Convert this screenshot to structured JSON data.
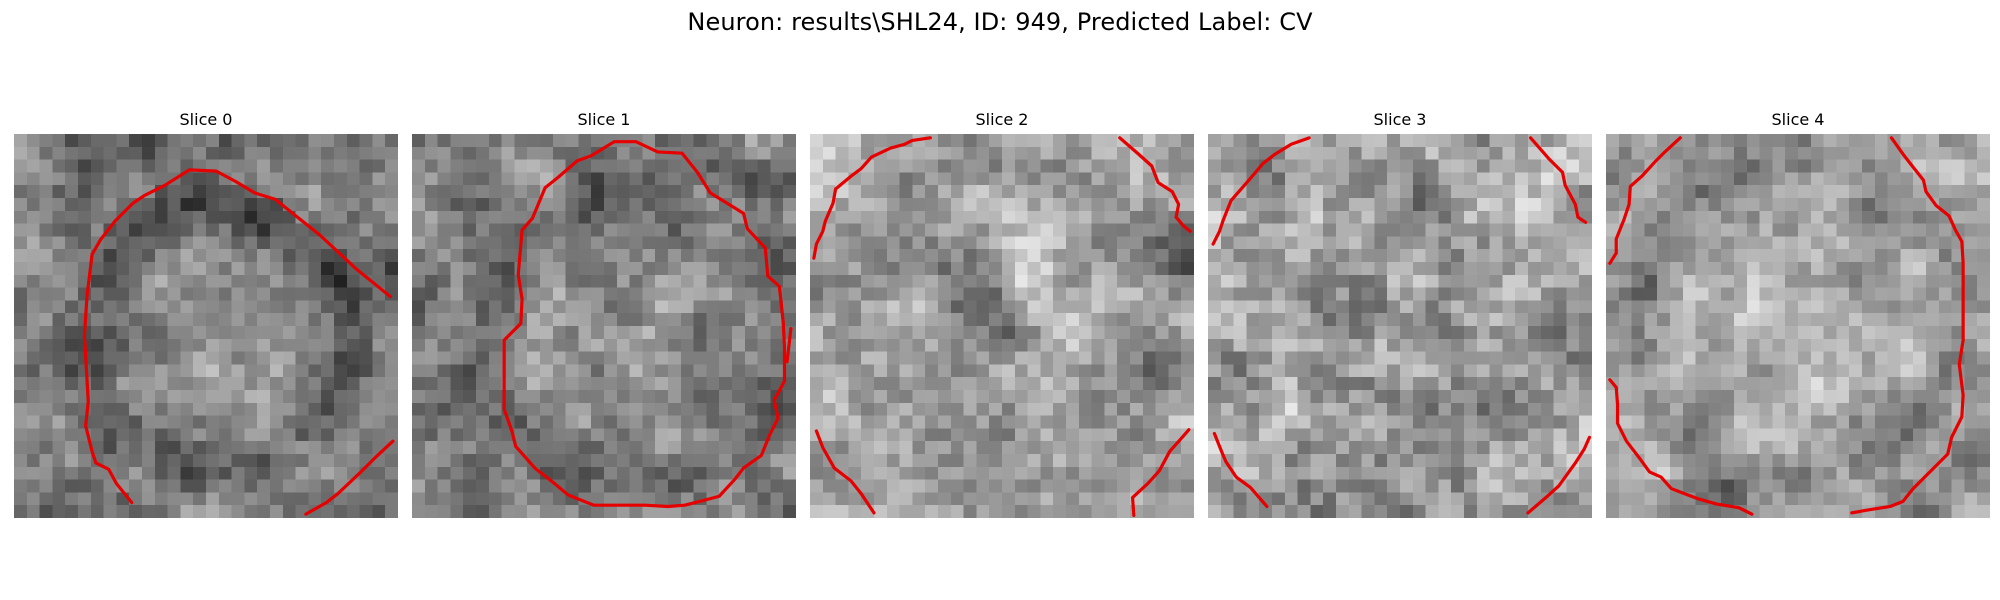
{
  "figure": {
    "title": "Neuron: results\\SHL24, ID: 949, Predicted Label: CV"
  },
  "colors": {
    "background": "#ffffff",
    "contour": "#ff0000",
    "image_colormap": "grayscale"
  },
  "slices": [
    {
      "title": "Slice 0"
    },
    {
      "title": "Slice 1"
    },
    {
      "title": "Slice 2"
    },
    {
      "title": "Slice 3"
    },
    {
      "title": "Slice 4"
    }
  ]
}
